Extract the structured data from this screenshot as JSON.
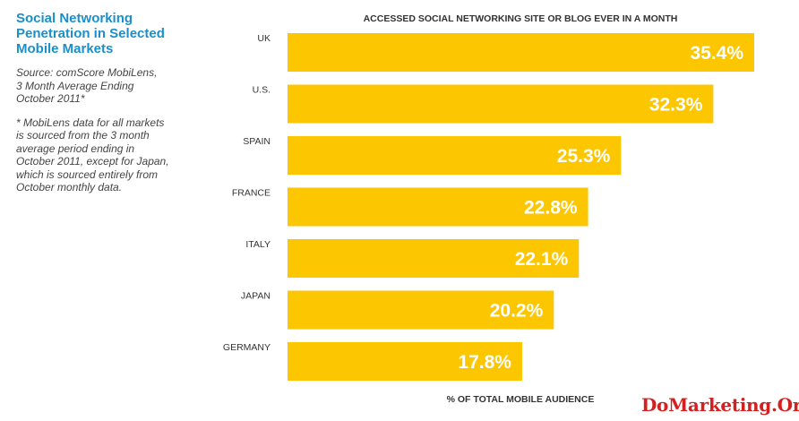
{
  "sidebar": {
    "title": "Social Networking Penetration in Selected Mobile Markets",
    "source": "Source: comScore MobiLens,\n3 Month Average Ending\nOctober 2011*",
    "footnote": "* MobiLens data for all markets\nis sourced from the 3 month\naverage period ending in\nOctober 2011, except for Japan,\nwhich is sourced entirely from\nOctober monthly data."
  },
  "watermark": "DoMarketing.Org",
  "colors": {
    "bar": "#fcc600",
    "title_blue": "#1a8fc9",
    "watermark_red": "#d42020"
  },
  "chart_data": {
    "type": "bar",
    "orientation": "horizontal",
    "title": "ACCESSED SOCIAL NETWORKING SITE OR BLOG EVER IN A MONTH",
    "xlabel": "% OF TOTAL MOBILE AUDIENCE",
    "ylabel": "",
    "categories": [
      "UK",
      "U.S.",
      "SPAIN",
      "FRANCE",
      "ITALY",
      "JAPAN",
      "GERMANY"
    ],
    "values": [
      35.4,
      32.3,
      25.3,
      22.8,
      22.1,
      20.2,
      17.8
    ],
    "value_labels": [
      "35.4%",
      "32.3%",
      "25.3%",
      "22.8%",
      "22.1%",
      "20.2%",
      "17.8%"
    ],
    "xlim": [
      0,
      35.4
    ],
    "grid": false,
    "legend": "none"
  }
}
